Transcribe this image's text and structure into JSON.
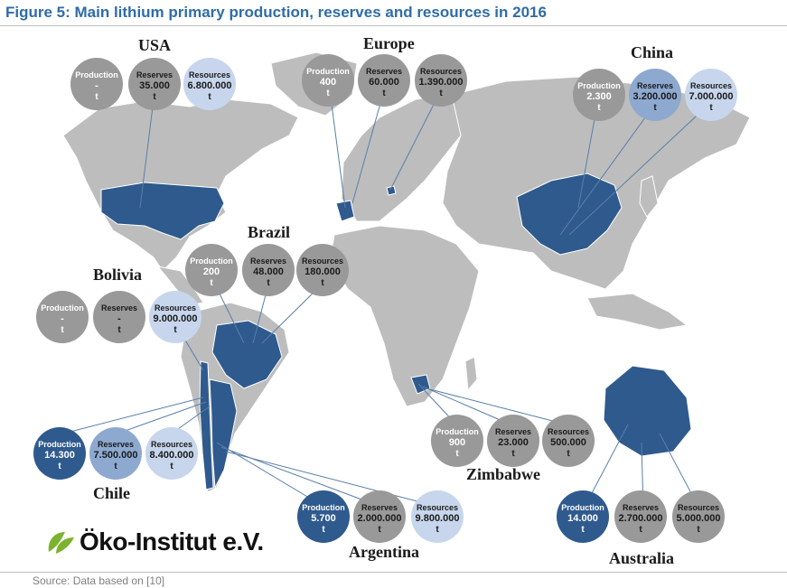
{
  "title": "Figure 5: Main lithium primary production, reserves and resources in 2016",
  "source": "Source: Data based on [10]",
  "logo_text": "Öko-Institut e.V.",
  "labels": {
    "production": "Production",
    "reserves": "Reserves",
    "resources": "Resources",
    "unit": "t"
  },
  "colors": {
    "title": "#2f6ca8",
    "highlight_country": "#2f5a8e",
    "land": "#bdbdbd",
    "circle_grey": "#999999",
    "circle_light": "#c7d6ec",
    "circle_mid": "#8ea9d0",
    "logo_green": "#7bb32e"
  },
  "regions": [
    {
      "id": "usa",
      "name": "USA",
      "production": "-",
      "reserves": "35.000",
      "resources": "6.800.000"
    },
    {
      "id": "europe",
      "name": "Europe",
      "production": "400",
      "reserves": "60.000",
      "resources": "1.390.000"
    },
    {
      "id": "china",
      "name": "China",
      "production": "2.300",
      "reserves": "3.200.000",
      "resources": "7.000.000"
    },
    {
      "id": "brazil",
      "name": "Brazil",
      "production": "200",
      "reserves": "48.000",
      "resources": "180.000"
    },
    {
      "id": "bolivia",
      "name": "Bolivia",
      "production": "-",
      "reserves": "-",
      "resources": "9.000.000"
    },
    {
      "id": "chile",
      "name": "Chile",
      "production": "14.300",
      "reserves": "7.500.000",
      "resources": "8.400.000"
    },
    {
      "id": "argentina",
      "name": "Argentina",
      "production": "5.700",
      "reserves": "2.000.000",
      "resources": "9.800.000"
    },
    {
      "id": "zimbabwe",
      "name": "Zimbabwe",
      "production": "900",
      "reserves": "23.000",
      "resources": "500.000"
    },
    {
      "id": "australia",
      "name": "Australia",
      "production": "14.000",
      "reserves": "2.700.000",
      "resources": "5.000.000"
    }
  ]
}
